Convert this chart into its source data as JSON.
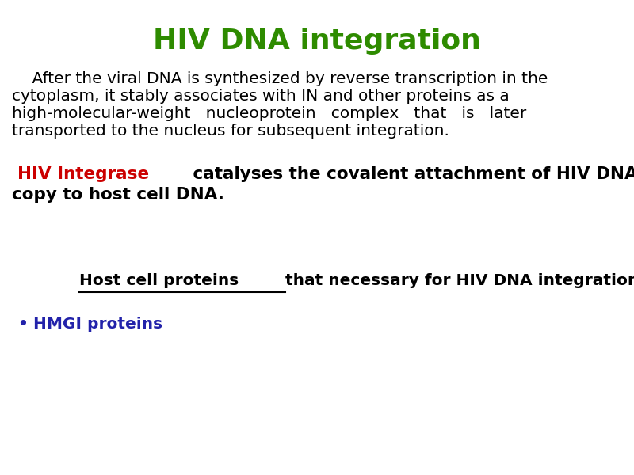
{
  "title": "HIV DNA integration",
  "title_color": "#2e8b00",
  "title_fontsize": 26,
  "bg_color": "#ffffff",
  "para1_line1": "    After the viral DNA is synthesized by reverse transcription in the",
  "para1_line2": "cytoplasm, it stably associates with IN and other proteins as a",
  "para1_line3": "high-molecular-weight   nucleoprotein   complex   that   is   later",
  "para1_line4": "transported to the nucleus for subsequent integration.",
  "para1_color": "#000000",
  "para1_fontsize": 14.5,
  "hiv_integrase_label": "HIV Integrase",
  "hiv_integrase_color": "#cc0000",
  "hiv_integrase_rest_line1": " catalyses the covalent attachment of HIV DNA",
  "hiv_integrase_line2": "copy to host cell DNA.",
  "hiv_integrase_rest_color": "#000000",
  "hiv_integrase_fontsize": 15.5,
  "host_cell_underlined": "Host cell proteins",
  "host_cell_rest": "that necessary for HIV DNA integration:",
  "host_cell_fontsize": 14.5,
  "host_cell_color": "#000000",
  "bullet_text": "HMGI proteins",
  "bullet_color": "#2222aa",
  "bullet_fontsize": 14.5
}
